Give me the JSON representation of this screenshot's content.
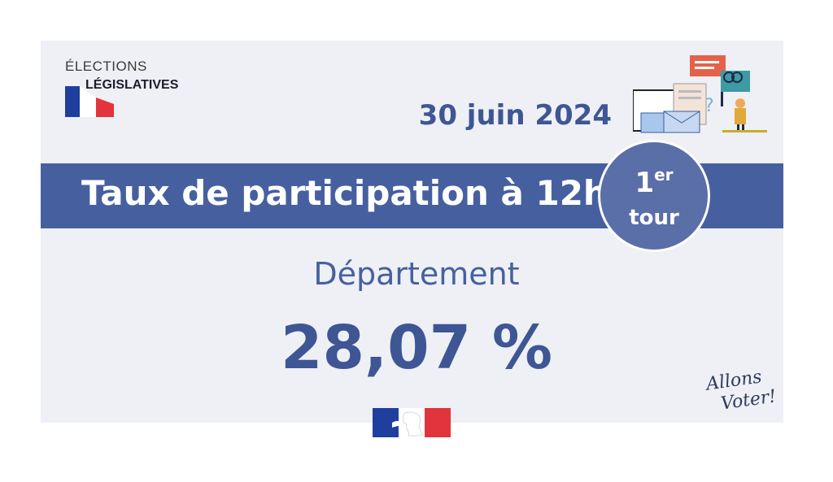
{
  "logo": {
    "line1": "ÉLECTIONS",
    "line2": "LÉGISLATIVES"
  },
  "date": "30 juin 2024",
  "banner": {
    "title": "Taux de participation à 12h"
  },
  "round": {
    "number": "1",
    "suffix": "er",
    "label": "tour"
  },
  "scope": "Département",
  "value": "28,07 %",
  "footer_brand": {
    "line1": "Allons",
    "line2": "Voter!"
  },
  "colors": {
    "primary": "#46609f",
    "card": "#eef0f5",
    "blue": "#1f3f9e",
    "red": "#e1343d"
  }
}
